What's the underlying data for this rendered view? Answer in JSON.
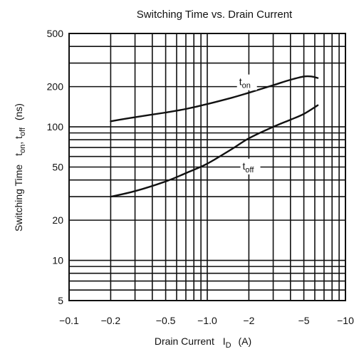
{
  "chart_data": {
    "type": "line",
    "title": "Switching Time vs. Drain Current",
    "xlabel": "Drain Current  I_D  (A)",
    "xlabel_main": "Drain Current",
    "xlabel_symbol": "I",
    "xlabel_sub": "D",
    "xlabel_unit": "(A)",
    "ylabel": "Switching Time  t_on, t_off  (ns)",
    "ylabel_main": "Switching Time",
    "ylabel_t1": "t",
    "ylabel_sub1": "on",
    "ylabel_sep": ", t",
    "ylabel_sub2": "off",
    "ylabel_unit": "(ns)",
    "x_scale": "log (absolute value of current, A)",
    "y_scale": "log",
    "xlim": [
      -0.1,
      -10
    ],
    "ylim": [
      5,
      500
    ],
    "x_ticks": [
      {
        "value": -0.1,
        "label": "−0.1"
      },
      {
        "value": -0.2,
        "label": "−0.2"
      },
      {
        "value": -0.5,
        "label": "−0.5"
      },
      {
        "value": -1.0,
        "label": "−1.0"
      },
      {
        "value": -2,
        "label": "−2"
      },
      {
        "value": -5,
        "label": "−5"
      },
      {
        "value": -10,
        "label": "−10"
      }
    ],
    "y_ticks": [
      {
        "value": 5,
        "label": "5"
      },
      {
        "value": 10,
        "label": "10"
      },
      {
        "value": 20,
        "label": "20"
      },
      {
        "value": 50,
        "label": "50"
      },
      {
        "value": 100,
        "label": "100"
      },
      {
        "value": 200,
        "label": "200"
      },
      {
        "value": 500,
        "label": "500"
      }
    ],
    "grid": true,
    "series": [
      {
        "name": "t_on",
        "label_main": "t",
        "label_sub": "on",
        "label_at": {
          "x": -1.7,
          "y": 205
        },
        "x": [
          -0.2,
          -0.3,
          -0.5,
          -0.7,
          -1.0,
          -1.5,
          -2.0,
          -3.0,
          -4.0,
          -5.0,
          -5.7,
          -6.3
        ],
        "y": [
          110,
          118,
          128,
          136,
          148,
          165,
          180,
          205,
          225,
          238,
          238,
          232
        ]
      },
      {
        "name": "t_off",
        "label_main": "t",
        "label_sub": "off",
        "label_at": {
          "x": -1.8,
          "y": 48
        },
        "x": [
          -0.2,
          -0.3,
          -0.5,
          -0.7,
          -1.0,
          -1.5,
          -2.0,
          -3.0,
          -4.0,
          -5.0,
          -6.3
        ],
        "y": [
          30,
          33,
          39,
          45,
          53,
          68,
          82,
          100,
          113,
          125,
          145
        ]
      }
    ]
  }
}
